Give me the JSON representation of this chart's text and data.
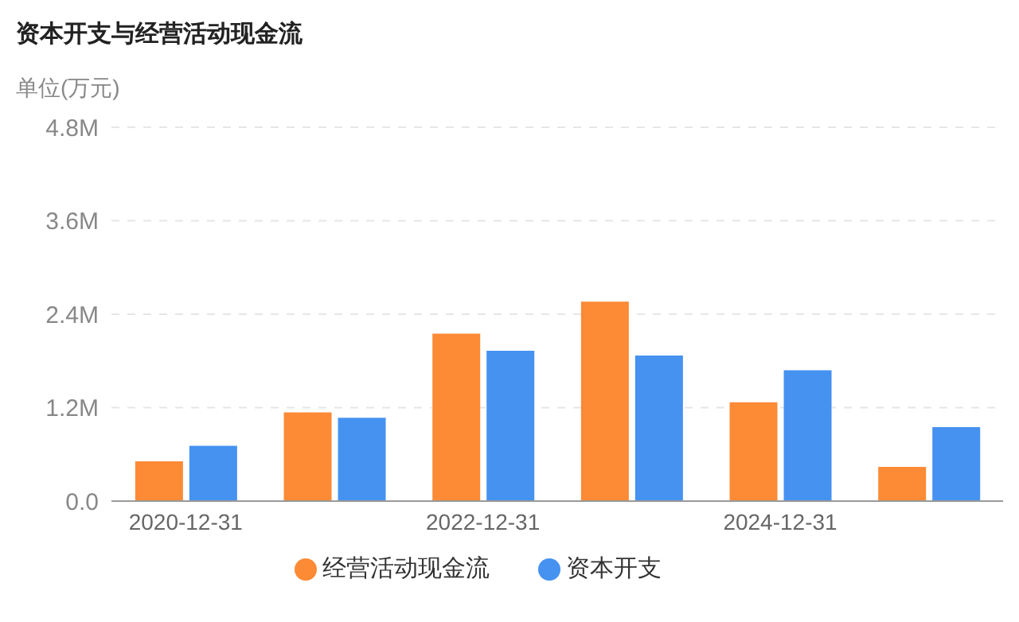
{
  "chart_data": {
    "type": "bar",
    "title": "资本开支与经营活动现金流",
    "ylabel": "单位(万元)",
    "categories": [
      "2020-12-31",
      null,
      "2022-12-31",
      null,
      "2024-12-31",
      null
    ],
    "series": [
      {
        "name": "经营活动现金流",
        "color": "#fd8a35",
        "values": [
          510000,
          1140000,
          2150000,
          2560000,
          1270000,
          440000
        ]
      },
      {
        "name": "资本开支",
        "color": "#4592f1",
        "values": [
          710000,
          1070000,
          1930000,
          1870000,
          1680000,
          950000
        ]
      }
    ],
    "ylim": [
      0,
      4800000
    ],
    "yticks": [
      {
        "value": 0,
        "label": "0.0"
      },
      {
        "value": 1200000,
        "label": "1.2M"
      },
      {
        "value": 2400000,
        "label": "2.4M"
      },
      {
        "value": 3600000,
        "label": "3.6M"
      },
      {
        "value": 4800000,
        "label": "4.8M"
      }
    ],
    "grid": "y",
    "legend": "bottom"
  }
}
